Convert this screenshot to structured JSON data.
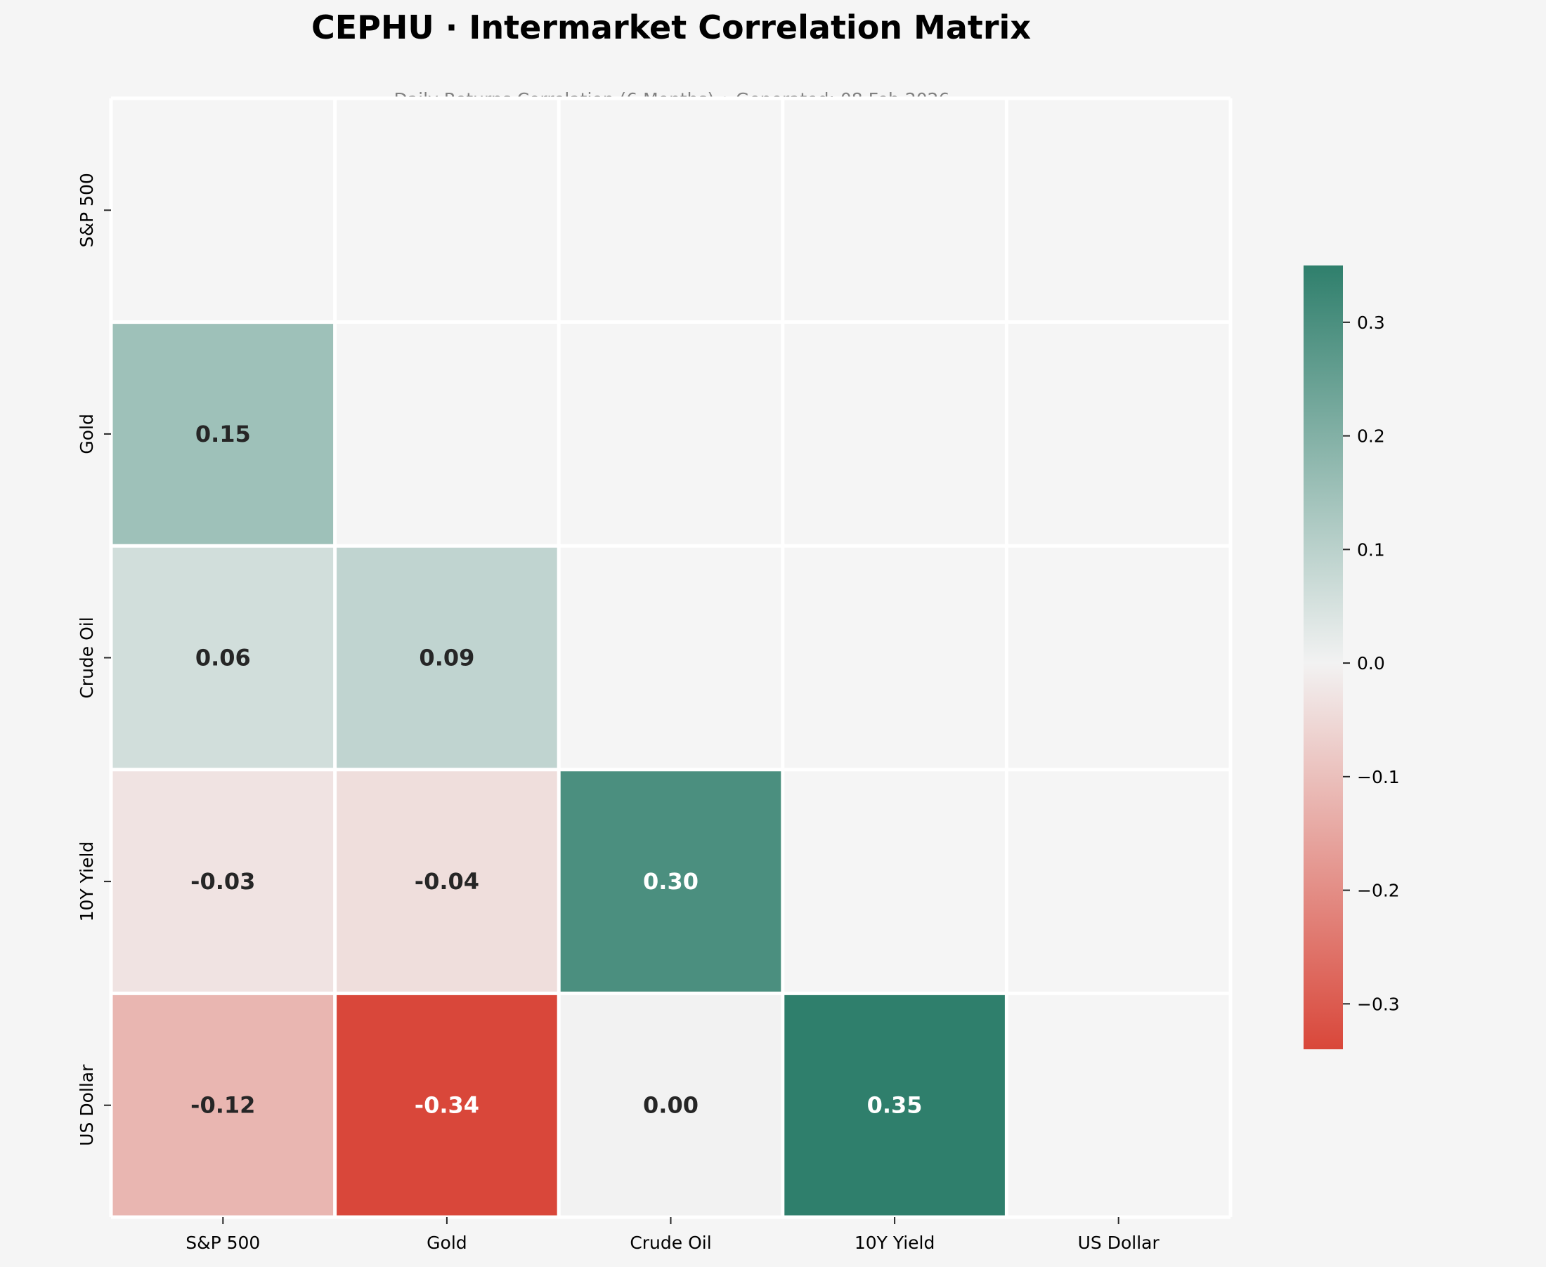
{
  "chart_data": {
    "type": "heatmap",
    "title": "CEPHU · Intermarket Correlation Matrix",
    "subtitle": "Daily Returns Correlation (6 Months) • Generated: 08 Feb 2026",
    "x_categories": [
      "S&P 500",
      "Gold",
      "Crude Oil",
      "10Y Yield",
      "US Dollar"
    ],
    "y_categories": [
      "S&P 500",
      "Gold",
      "Crude Oil",
      "10Y Yield",
      "US Dollar"
    ],
    "values": [
      [
        null,
        null,
        null,
        null,
        null
      ],
      [
        0.15,
        null,
        null,
        null,
        null
      ],
      [
        0.06,
        0.09,
        null,
        null,
        null
      ],
      [
        -0.03,
        -0.04,
        0.3,
        null,
        null
      ],
      [
        -0.12,
        -0.34,
        0.0,
        0.35,
        null
      ]
    ],
    "value_labels": [
      [
        null,
        null,
        null,
        null,
        null
      ],
      [
        "0.15",
        null,
        null,
        null,
        null
      ],
      [
        "0.06",
        "0.09",
        null,
        null,
        null
      ],
      [
        "-0.03",
        "-0.04",
        "0.30",
        null,
        null
      ],
      [
        "-0.12",
        "-0.34",
        "0.00",
        "0.35",
        null
      ]
    ],
    "mask": "upper triangle including diagonal",
    "colorscale": {
      "min": -0.34,
      "max": 0.35,
      "low_color": "#d9473a",
      "mid_color": "#f2f2f2",
      "high_color": "#2f7f6c",
      "ticks": [
        -0.3,
        -0.2,
        -0.1,
        0.0,
        0.1,
        0.2,
        0.3
      ],
      "tick_labels": [
        "−0.3",
        "−0.2",
        "−0.1",
        "0.0",
        "0.1",
        "0.2",
        "0.3"
      ]
    },
    "colors": {
      "background": "#f5f5f5",
      "masked_cell": "#f5f5f5",
      "grid_line": "#ffffff",
      "title": "#000000",
      "subtitle": "#808080",
      "dark_text": "#262626",
      "light_text": "#ffffff"
    }
  }
}
